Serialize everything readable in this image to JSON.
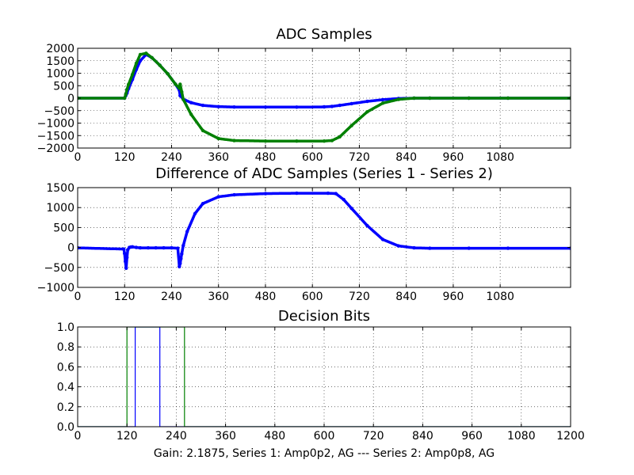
{
  "chart_data": [
    {
      "type": "scatter",
      "title": "ADC Samples",
      "xlabel": "",
      "ylabel": "",
      "xlim": [
        0,
        1260
      ],
      "ylim": [
        -2000,
        2000
      ],
      "xticks": [
        0,
        120,
        240,
        360,
        480,
        600,
        720,
        840,
        960,
        1080
      ],
      "yticks": [
        2000,
        1500,
        1000,
        500,
        0,
        -500,
        -1000,
        -1500,
        -2000
      ],
      "xtick_labels": [
        "0",
        "120",
        "240",
        "360",
        "480",
        "600",
        "720",
        "840",
        "960",
        "1080"
      ],
      "ytick_labels": [
        "2000",
        "1500",
        "1000",
        "500",
        "0",
        "−500",
        "−1000",
        "−1500",
        "−2000"
      ],
      "grid": true,
      "series": [
        {
          "name": "Series 1",
          "color": "#0000ff",
          "x": [
            0,
            120,
            123,
            126,
            130,
            140,
            150,
            160,
            175,
            190,
            210,
            230,
            250,
            260,
            262,
            270,
            290,
            320,
            360,
            400,
            480,
            560,
            630,
            650,
            670,
            700,
            740,
            780,
            820,
            860,
            900,
            1000,
            1100,
            1260
          ],
          "y": [
            0,
            0,
            100,
            200,
            380,
            750,
            1150,
            1500,
            1750,
            1620,
            1320,
            980,
            560,
            320,
            100,
            -40,
            -180,
            -290,
            -340,
            -355,
            -360,
            -360,
            -350,
            -330,
            -290,
            -220,
            -130,
            -60,
            -15,
            0,
            0,
            0,
            0,
            0
          ]
        },
        {
          "name": "Series 2",
          "color": "#008000",
          "x": [
            0,
            120,
            123,
            126,
            130,
            140,
            150,
            160,
            175,
            190,
            210,
            230,
            250,
            260,
            262,
            266,
            270,
            290,
            320,
            360,
            400,
            480,
            560,
            630,
            650,
            670,
            700,
            740,
            780,
            820,
            860,
            900,
            1000,
            1100,
            1260
          ],
          "y": [
            0,
            0,
            150,
            350,
            550,
            950,
            1400,
            1750,
            1800,
            1620,
            1320,
            980,
            560,
            400,
            560,
            250,
            -50,
            -650,
            -1300,
            -1620,
            -1700,
            -1720,
            -1720,
            -1720,
            -1700,
            -1550,
            -1100,
            -550,
            -200,
            -50,
            0,
            0,
            0,
            0,
            0
          ]
        }
      ]
    },
    {
      "type": "scatter",
      "title": "Difference of ADC Samples (Series 1 - Series 2)",
      "xlabel": "",
      "ylabel": "",
      "xlim": [
        0,
        1260
      ],
      "ylim": [
        -1000,
        1500
      ],
      "xticks": [
        0,
        120,
        240,
        360,
        480,
        600,
        720,
        840,
        960,
        1080
      ],
      "yticks": [
        1500,
        1000,
        500,
        0,
        -500,
        -1000
      ],
      "xtick_labels": [
        "0",
        "120",
        "240",
        "360",
        "480",
        "600",
        "720",
        "840",
        "960",
        "1080"
      ],
      "ytick_labels": [
        "1500",
        "1000",
        "500",
        "0",
        "−500",
        "−1000"
      ],
      "grid": true,
      "series": [
        {
          "name": "Difference",
          "color": "#0000ff",
          "x": [
            0,
            118,
            120,
            122,
            124,
            126,
            128,
            132,
            136,
            140,
            150,
            160,
            180,
            200,
            220,
            240,
            256,
            260,
            262,
            264,
            266,
            270,
            280,
            300,
            320,
            360,
            400,
            480,
            560,
            640,
            660,
            680,
            700,
            740,
            780,
            820,
            860,
            900,
            1000,
            1100,
            1260
          ],
          "y": [
            -10,
            -40,
            -150,
            -350,
            -520,
            -250,
            -60,
            0,
            10,
            15,
            0,
            -10,
            -10,
            -10,
            -10,
            -10,
            -20,
            -480,
            -400,
            -280,
            -160,
            50,
            400,
            850,
            1100,
            1270,
            1320,
            1350,
            1360,
            1360,
            1350,
            1200,
            980,
            550,
            200,
            40,
            -10,
            -20,
            -20,
            -20,
            -20
          ]
        }
      ]
    },
    {
      "type": "line",
      "title": "Decision Bits",
      "xlabel": "Gain: 2.1875, Series 1: Amp0p2, AG --- Series 2: Amp0p8, AG",
      "ylabel": "",
      "xlim": [
        0,
        1200
      ],
      "ylim": [
        0.0,
        1.0
      ],
      "xticks": [
        0,
        120,
        240,
        360,
        480,
        600,
        720,
        840,
        960,
        1080,
        1200
      ],
      "yticks": [
        1.0,
        0.8,
        0.6,
        0.4,
        0.2,
        0.0
      ],
      "xtick_labels": [
        "0",
        "120",
        "240",
        "360",
        "480",
        "600",
        "720",
        "840",
        "960",
        "1080",
        "1200"
      ],
      "ytick_labels": [
        "1.0",
        "0.8",
        "0.6",
        "0.4",
        "0.2",
        "0.0"
      ],
      "grid": true,
      "series": [
        {
          "name": "Series 1",
          "color": "#0000ff",
          "x": [
            0,
            140,
            140,
            200,
            200,
            1200
          ],
          "y": [
            0,
            0,
            1,
            1,
            0,
            0
          ]
        },
        {
          "name": "Series 2",
          "color": "#008000",
          "x": [
            0,
            120,
            120,
            260,
            260,
            1200
          ],
          "y": [
            0,
            0,
            1,
            1,
            0,
            0
          ]
        }
      ]
    }
  ]
}
